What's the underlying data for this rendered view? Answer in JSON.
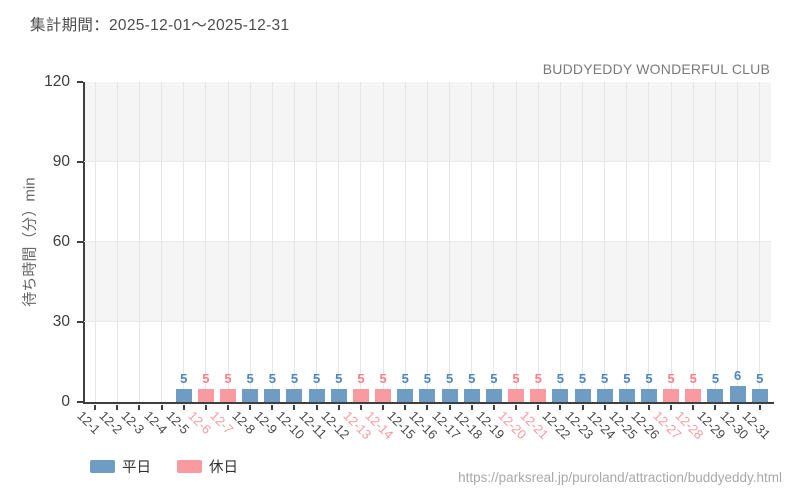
{
  "header": {
    "period_label": "集計期間：2025-12-01～2025-12-31"
  },
  "footer": {
    "source_url": "https://parksreal.jp/puroland/attraction/buddyeddy.html"
  },
  "chart_data": {
    "type": "bar",
    "title": "BUDDYEDDY WONDERFUL CLUB",
    "xlabel": "",
    "ylabel": "待ち時間（分）min",
    "ylim": [
      0,
      120
    ],
    "yticks": [
      0,
      30,
      60,
      90,
      120
    ],
    "grid": "on",
    "legend_position": "bottom-left",
    "categories": [
      "12-1",
      "12-2",
      "12-3",
      "12-4",
      "12-5",
      "12-6",
      "12-7",
      "12-8",
      "12-9",
      "12-10",
      "12-11",
      "12-12",
      "12-13",
      "12-14",
      "12-15",
      "12-16",
      "12-17",
      "12-18",
      "12-19",
      "12-20",
      "12-21",
      "12-22",
      "12-23",
      "12-24",
      "12-25",
      "12-26",
      "12-27",
      "12-28",
      "12-29",
      "12-30",
      "12-31"
    ],
    "series": [
      {
        "name": "平日",
        "color": "#6e9cc3",
        "value_label_color": "#4d87bd",
        "tick_label_color": "#4a4a4a",
        "values": [
          null,
          null,
          null,
          null,
          5,
          null,
          null,
          5,
          5,
          5,
          5,
          5,
          null,
          null,
          5,
          5,
          5,
          5,
          5,
          null,
          null,
          5,
          5,
          5,
          5,
          5,
          null,
          null,
          5,
          6,
          5
        ]
      },
      {
        "name": "休日",
        "color": "#f99aa1",
        "value_label_color": "#f5808b",
        "tick_label_color": "#f89aa2",
        "values": [
          null,
          null,
          null,
          null,
          null,
          5,
          5,
          null,
          null,
          null,
          null,
          null,
          5,
          5,
          null,
          null,
          null,
          null,
          null,
          5,
          5,
          null,
          null,
          null,
          null,
          null,
          5,
          5,
          null,
          null,
          null
        ]
      }
    ]
  }
}
